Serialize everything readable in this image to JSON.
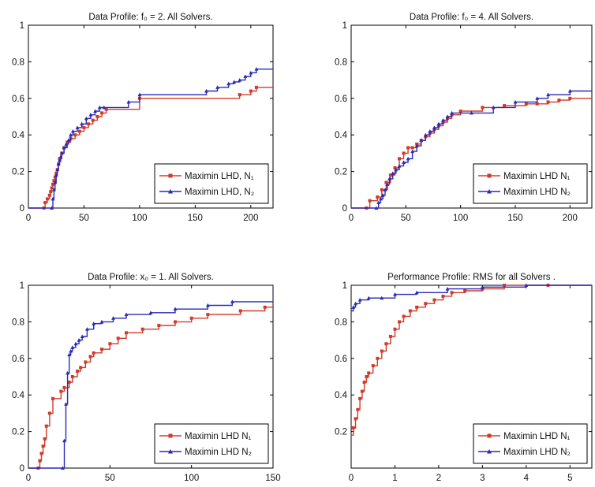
{
  "colors": {
    "red": "#d23a2a",
    "blue": "#2a2ab8",
    "axis": "#000000"
  },
  "chart_data": [
    {
      "type": "line",
      "title": "Data Profile: f₀ = 2.  All Solvers.",
      "xlim": [
        0,
        220
      ],
      "ylim": [
        0,
        1
      ],
      "xticks": [
        0,
        50,
        100,
        150,
        200
      ],
      "yticks": [
        0,
        0.2,
        0.4,
        0.6,
        0.8,
        1
      ],
      "legend_position": "bottom-right",
      "series": [
        {
          "name": "Maximin LHD, N₁",
          "color": "red",
          "marker": "square",
          "x": [
            0,
            14,
            15,
            17,
            19,
            20,
            21,
            22,
            23,
            24,
            25,
            26,
            27,
            28,
            30,
            32,
            35,
            38,
            42,
            46,
            50,
            54,
            58,
            62,
            66,
            70,
            100,
            190,
            200,
            205,
            220
          ],
          "y": [
            0,
            0,
            0.03,
            0.05,
            0.07,
            0.09,
            0.11,
            0.13,
            0.15,
            0.17,
            0.19,
            0.21,
            0.24,
            0.27,
            0.3,
            0.33,
            0.36,
            0.38,
            0.4,
            0.42,
            0.44,
            0.46,
            0.48,
            0.5,
            0.52,
            0.54,
            0.6,
            0.62,
            0.64,
            0.66,
            0.66
          ]
        },
        {
          "name": "Maximin LHD, N₂",
          "color": "blue",
          "marker": "triangle",
          "x": [
            0,
            21,
            22,
            23,
            24,
            25,
            26,
            27,
            28,
            29,
            30,
            32,
            34,
            36,
            38,
            40,
            44,
            48,
            52,
            56,
            60,
            64,
            68,
            90,
            100,
            160,
            170,
            180,
            185,
            190,
            195,
            200,
            205,
            220
          ],
          "y": [
            0,
            0,
            0.05,
            0.1,
            0.14,
            0.18,
            0.21,
            0.24,
            0.26,
            0.28,
            0.3,
            0.33,
            0.35,
            0.37,
            0.4,
            0.42,
            0.44,
            0.46,
            0.49,
            0.51,
            0.53,
            0.55,
            0.55,
            0.58,
            0.62,
            0.64,
            0.66,
            0.68,
            0.69,
            0.7,
            0.72,
            0.74,
            0.76,
            0.76
          ]
        }
      ]
    },
    {
      "type": "line",
      "title": "Data Profile: f₀ = 4.  All Solvers.",
      "xlim": [
        0,
        220
      ],
      "ylim": [
        0,
        1
      ],
      "xticks": [
        0,
        50,
        100,
        150,
        200
      ],
      "yticks": [
        0,
        0.2,
        0.4,
        0.6,
        0.8,
        1
      ],
      "legend_position": "bottom-right",
      "series": [
        {
          "name": "Maximin LHD N₁",
          "color": "red",
          "marker": "square",
          "x": [
            0,
            14,
            17,
            24,
            28,
            32,
            36,
            40,
            44,
            48,
            52,
            56,
            60,
            64,
            68,
            72,
            76,
            80,
            84,
            88,
            92,
            100,
            120,
            140,
            160,
            170,
            180,
            190,
            200,
            220
          ],
          "y": [
            0,
            0,
            0.04,
            0.06,
            0.1,
            0.14,
            0.18,
            0.22,
            0.27,
            0.3,
            0.33,
            0.33,
            0.35,
            0.37,
            0.39,
            0.41,
            0.43,
            0.45,
            0.47,
            0.49,
            0.51,
            0.53,
            0.55,
            0.56,
            0.57,
            0.57,
            0.58,
            0.59,
            0.6,
            0.6
          ]
        },
        {
          "name": "Maximin LHD N₂",
          "color": "blue",
          "marker": "triangle",
          "x": [
            0,
            23,
            25,
            27,
            29,
            31,
            33,
            35,
            38,
            41,
            44,
            48,
            52,
            56,
            60,
            64,
            68,
            72,
            76,
            80,
            84,
            88,
            92,
            110,
            130,
            150,
            170,
            180,
            200,
            220
          ],
          "y": [
            0,
            0,
            0.03,
            0.05,
            0.07,
            0.1,
            0.13,
            0.16,
            0.19,
            0.21,
            0.23,
            0.25,
            0.27,
            0.31,
            0.34,
            0.37,
            0.4,
            0.42,
            0.44,
            0.46,
            0.48,
            0.5,
            0.52,
            0.52,
            0.55,
            0.58,
            0.6,
            0.62,
            0.64,
            0.64
          ]
        }
      ]
    },
    {
      "type": "line",
      "title": "Data Profile: x₀ = 1.  All Solvers.",
      "xlim": [
        0,
        150
      ],
      "ylim": [
        0,
        1
      ],
      "xticks": [
        0,
        50,
        100,
        150
      ],
      "yticks": [
        0,
        0.2,
        0.4,
        0.6,
        0.8,
        1
      ],
      "legend_position": "bottom-right",
      "series": [
        {
          "name": "Maximin LHD N₁",
          "color": "red",
          "marker": "square",
          "x": [
            0,
            6,
            7,
            8,
            9,
            10,
            11,
            13,
            15,
            20,
            22,
            25,
            27,
            30,
            32,
            35,
            38,
            40,
            45,
            50,
            55,
            60,
            70,
            80,
            90,
            100,
            110,
            130,
            145,
            150
          ],
          "y": [
            0,
            0,
            0.04,
            0.08,
            0.12,
            0.16,
            0.23,
            0.3,
            0.38,
            0.42,
            0.44,
            0.47,
            0.5,
            0.53,
            0.55,
            0.58,
            0.61,
            0.63,
            0.65,
            0.68,
            0.71,
            0.74,
            0.76,
            0.78,
            0.8,
            0.82,
            0.84,
            0.86,
            0.88,
            0.88
          ]
        },
        {
          "name": "Maximin LHD N₂",
          "color": "blue",
          "marker": "triangle",
          "x": [
            0,
            21,
            22,
            23,
            24,
            25,
            26,
            27,
            29,
            31,
            33,
            36,
            40,
            45,
            52,
            60,
            75,
            90,
            110,
            125,
            150
          ],
          "y": [
            0,
            0,
            0.15,
            0.35,
            0.52,
            0.62,
            0.64,
            0.66,
            0.68,
            0.7,
            0.72,
            0.76,
            0.79,
            0.8,
            0.82,
            0.84,
            0.85,
            0.87,
            0.89,
            0.91,
            0.91
          ]
        }
      ]
    },
    {
      "type": "line",
      "title": "Performance Profile: RMS for all Solvers .",
      "xlim": [
        0,
        5.5
      ],
      "ylim": [
        0,
        1
      ],
      "xticks": [
        0,
        1,
        2,
        3,
        4,
        5
      ],
      "yticks": [
        0.2,
        0.4,
        0.6,
        0.8,
        1
      ],
      "legend_position": "bottom-right",
      "series": [
        {
          "name": "Maximin LHD N₁",
          "color": "red",
          "marker": "square",
          "x": [
            0,
            0.05,
            0.1,
            0.15,
            0.2,
            0.25,
            0.3,
            0.35,
            0.4,
            0.5,
            0.6,
            0.7,
            0.8,
            0.9,
            1.0,
            1.1,
            1.2,
            1.35,
            1.5,
            1.7,
            1.9,
            2.1,
            2.3,
            2.6,
            3.0,
            3.5,
            4.5,
            5.5
          ],
          "y": [
            0.18,
            0.22,
            0.27,
            0.32,
            0.38,
            0.42,
            0.47,
            0.5,
            0.52,
            0.56,
            0.6,
            0.64,
            0.68,
            0.72,
            0.76,
            0.8,
            0.83,
            0.86,
            0.88,
            0.9,
            0.92,
            0.94,
            0.96,
            0.97,
            0.98,
            1.0,
            1.0,
            1.0
          ]
        },
        {
          "name": "Maximin LHD N₂",
          "color": "blue",
          "marker": "triangle",
          "x": [
            0,
            0.05,
            0.1,
            0.2,
            0.4,
            0.7,
            1.0,
            1.5,
            2.2,
            3.0,
            4.0,
            5.5
          ],
          "y": [
            0.86,
            0.88,
            0.9,
            0.92,
            0.93,
            0.93,
            0.95,
            0.96,
            0.98,
            0.99,
            1.0,
            1.0
          ]
        }
      ]
    }
  ]
}
